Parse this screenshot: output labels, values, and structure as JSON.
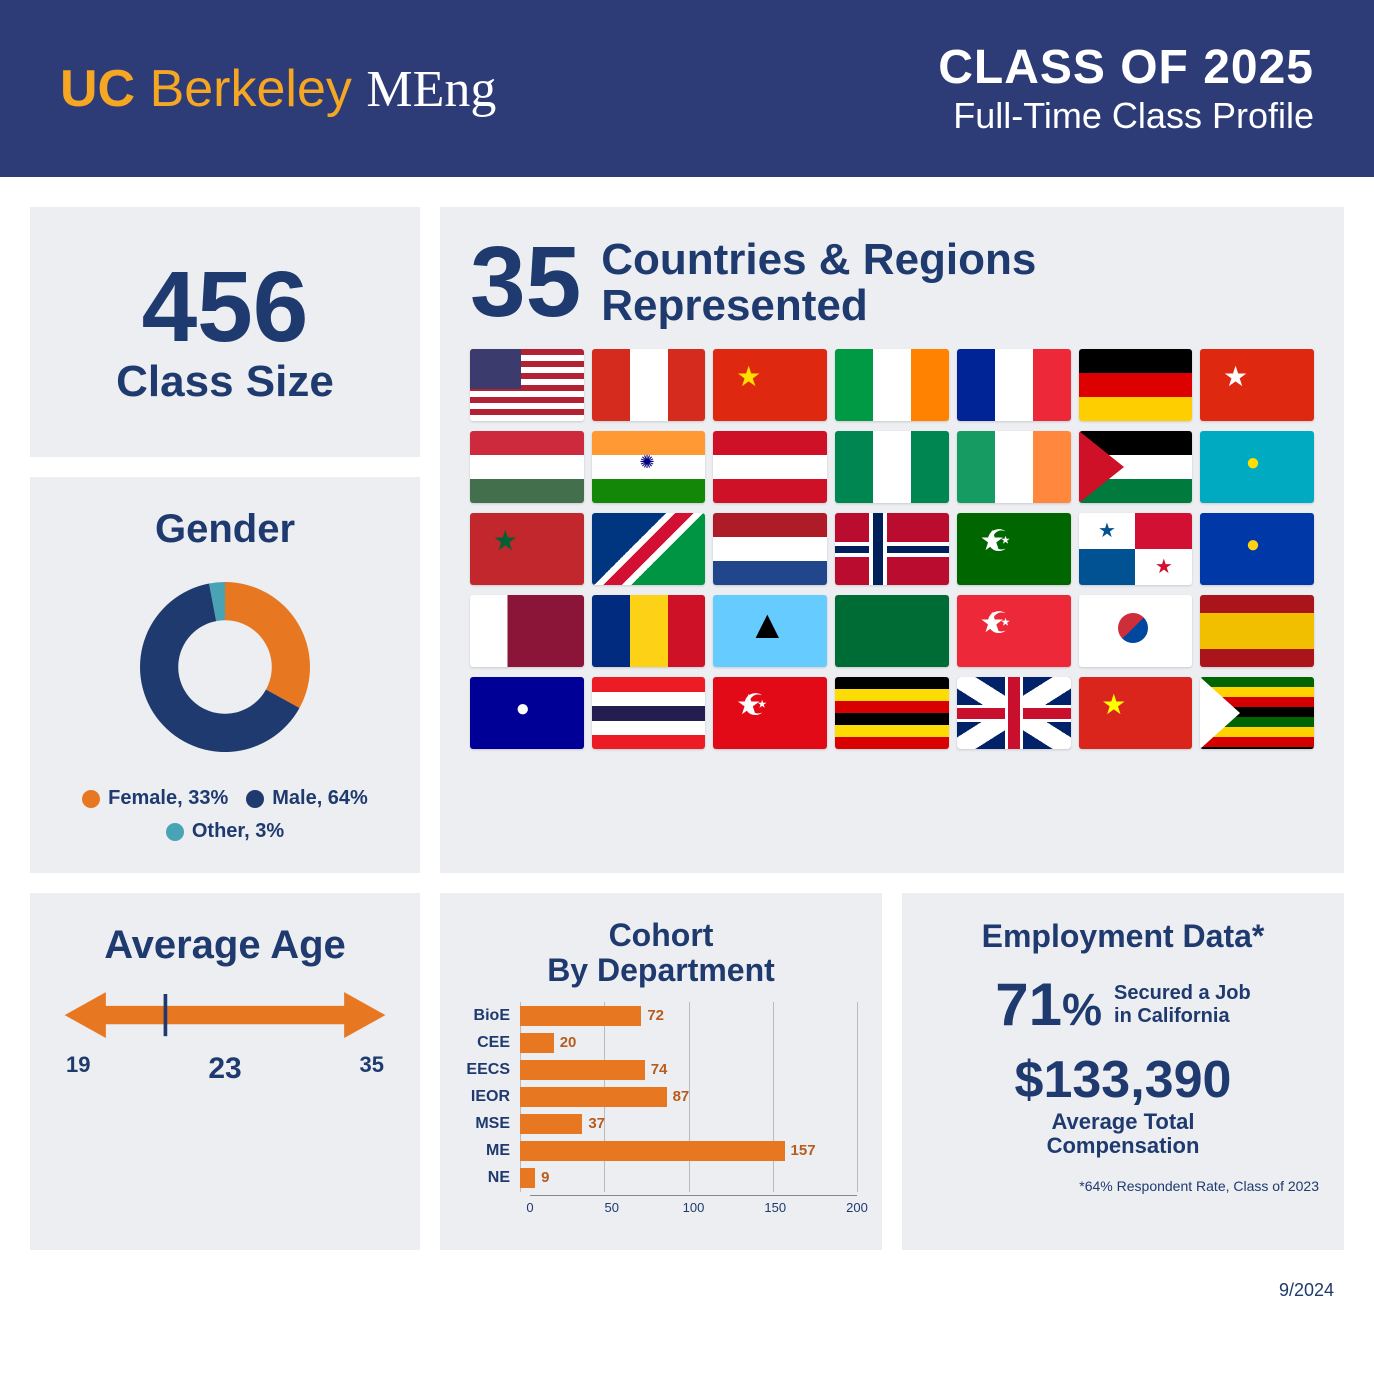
{
  "header": {
    "logo_uc": "UC",
    "logo_berkeley": "Berkeley",
    "logo_meng": "MEng",
    "title": "CLASS OF 2025",
    "subtitle": "Full-Time Class Profile",
    "bg_color": "#2d3c77",
    "accent_color": "#f5a623"
  },
  "class_size": {
    "value": "456",
    "label": "Class Size"
  },
  "countries": {
    "value": "35",
    "label": "Countries & Regions\nRepresented",
    "flag_count": 35
  },
  "gender": {
    "title": "Gender",
    "type": "donut",
    "segments": [
      {
        "label": "Female",
        "pct": 33,
        "color": "#e87722"
      },
      {
        "label": "Male",
        "pct": 64,
        "color": "#1f3a6e"
      },
      {
        "label": "Other",
        "pct": 3,
        "color": "#4aa3b5"
      }
    ],
    "inner_radius_ratio": 0.55,
    "legend_labels": [
      "Female, 33%",
      "Male, 64%",
      "Other, 3%"
    ]
  },
  "age": {
    "title": "Average Age",
    "min": 19,
    "value": 23,
    "max": 35,
    "arrow_color": "#e87722",
    "tick_color": "#1f3a6e"
  },
  "cohort": {
    "title": "Cohort\nBy Department",
    "type": "bar",
    "bar_color": "#e87722",
    "value_color": "#b85c1e",
    "label_color": "#1f3a6e",
    "xlim": [
      0,
      200
    ],
    "xtick_step": 50,
    "xticks": [
      0,
      50,
      100,
      150,
      200
    ],
    "grid_color": "#bbbbbb",
    "bars": [
      {
        "label": "BioE",
        "value": 72
      },
      {
        "label": "CEE",
        "value": 20
      },
      {
        "label": "EECS",
        "value": 74
      },
      {
        "label": "IEOR",
        "value": 87
      },
      {
        "label": "MSE",
        "value": 37
      },
      {
        "label": "ME",
        "value": 157
      },
      {
        "label": "NE",
        "value": 9
      }
    ]
  },
  "employment": {
    "title": "Employment Data*",
    "pct_value": "71",
    "pct_symbol": "%",
    "pct_label": "Secured a Job\nin California",
    "salary": "$133,390",
    "salary_label": "Average Total\nCompensation",
    "note": "*64% Respondent Rate, Class of 2023"
  },
  "colors": {
    "card_bg": "#eceef1",
    "navy": "#1f3a6e",
    "orange": "#e87722"
  },
  "footer_date": "9/2024"
}
